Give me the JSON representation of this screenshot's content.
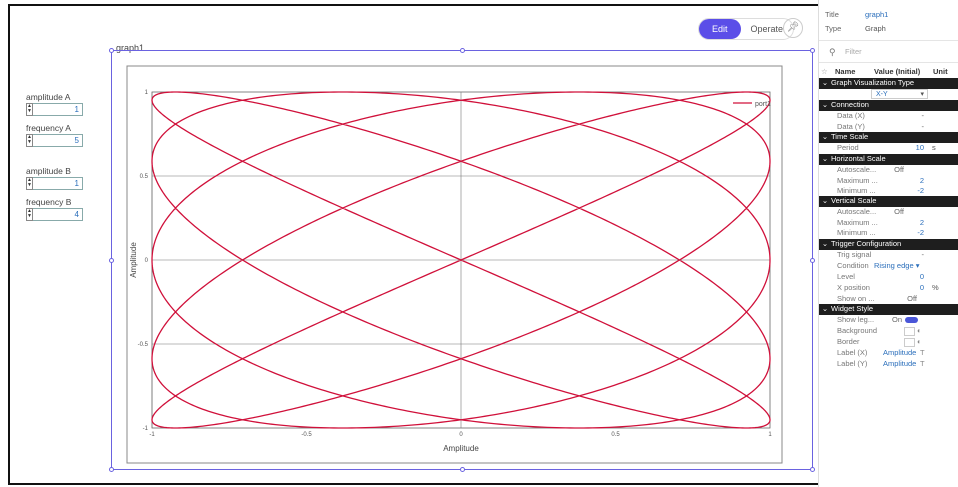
{
  "toolbar": {
    "edit_label": "Edit",
    "operate_label": "Operate",
    "pin_icon": "pin-icon"
  },
  "graph_name": "graph1",
  "controls": [
    {
      "label": "amplitude A",
      "value": "1"
    },
    {
      "label": "frequency A",
      "value": "5"
    },
    {
      "label": "amplitude B",
      "value": "1"
    },
    {
      "label": "frequency B",
      "value": "4"
    }
  ],
  "colors": {
    "accent": "#5b4ee8",
    "series": "#d0103a",
    "link": "#2a6ebb"
  },
  "chart_data": {
    "type": "line",
    "xlabel": "Amplitude",
    "ylabel": "Amplitude",
    "xlim": [
      -1,
      1
    ],
    "ylim": [
      -1,
      1
    ],
    "x_ticks": [
      "-1",
      "-0.5",
      "0",
      "0.5",
      "1"
    ],
    "y_ticks": [
      "1",
      "0.5",
      "0",
      "-0.5",
      "-1"
    ],
    "grid": true,
    "legend_placement": "top-right",
    "series": [
      {
        "name": "port1",
        "x_function": "sin(5t)",
        "y_function": "sin(4t)",
        "amplitude_x": 1,
        "amplitude_y": 1
      }
    ]
  },
  "panel": {
    "title_key": "Title",
    "title_val": "graph1",
    "type_key": "Type",
    "type_val": "Graph",
    "filter_placeholder": "Filter",
    "col_name": "Name",
    "col_value": "Value (Initial)",
    "col_unit": "Unit",
    "sections": {
      "viz": "Graph Visualization Type",
      "connection": "Connection",
      "timescale": "Time Scale",
      "hscale": "Horizontal Scale",
      "vscale": "Vertical Scale",
      "trigger": "Trigger Configuration",
      "style": "Widget Style"
    },
    "viz_value": "X-Y",
    "data_x": "Data (X)",
    "data_y": "Data (Y)",
    "dash": "-",
    "period": "Period",
    "period_val": "10",
    "period_unit": "s",
    "autoscale": "Autoscale...",
    "off": "Off",
    "maximum": "Maximum ...",
    "max_val": "2",
    "minimum": "Minimum ...",
    "min_val": "-2",
    "trig_signal": "Trig signal",
    "condition": "Condition",
    "condition_val": "Rising edge",
    "level": "Level",
    "level_val": "0",
    "xpos": "X position",
    "xpos_val": "0",
    "xpos_unit": "%",
    "show_on": "Show on ...",
    "show_leg": "Show leg...",
    "on": "On",
    "background": "Background",
    "border": "Border",
    "label_x": "Label (X)",
    "label_y": "Label (Y)",
    "label_val": "Amplitude"
  }
}
